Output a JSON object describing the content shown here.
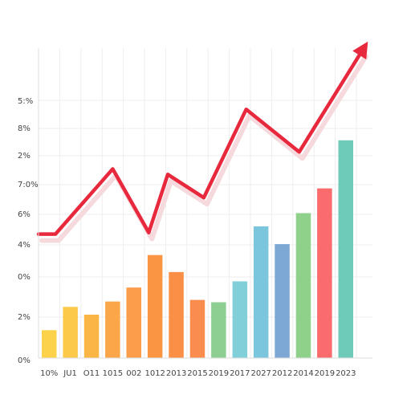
{
  "chart_data": {
    "type": "bar",
    "categories": [
      "10%",
      "JU1",
      "O11",
      "1015",
      "002",
      "1012",
      "2013",
      "2015",
      "2019",
      "2017",
      "2027",
      "2012",
      "2014",
      "2019",
      "2023"
    ],
    "y_tick_labels": [
      "0%",
      "2%",
      "0%",
      "4%",
      "6%",
      "7:0%",
      "2%",
      "8%",
      "5:%"
    ],
    "grid": true,
    "legend": "none",
    "series": [
      {
        "type": "bar",
        "values": [
          36,
          66,
          56,
          73,
          91,
          133,
          111,
          75,
          72,
          99,
          170,
          147,
          187,
          219,
          281
        ],
        "colors": [
          "#fcd24a",
          "#fcc94a",
          "#fbb545",
          "#fba649",
          "#fb9d4a",
          "#fa9642",
          "#fa8f45",
          "#fa8d4e",
          "#8dcf93",
          "#81cfd8",
          "#7bc6dc",
          "#7da8d6",
          "#8fd18a",
          "#f96b6d",
          "#6fcbb9"
        ]
      },
      {
        "type": "line",
        "x": [
          0,
          0.8,
          3.5,
          5.2,
          6.1,
          7.8,
          9.8,
          12.3,
          15.3
        ],
        "values": [
          160,
          160,
          244,
          162,
          237,
          207,
          321,
          266,
          398
        ],
        "color": "#e8283c"
      }
    ]
  }
}
